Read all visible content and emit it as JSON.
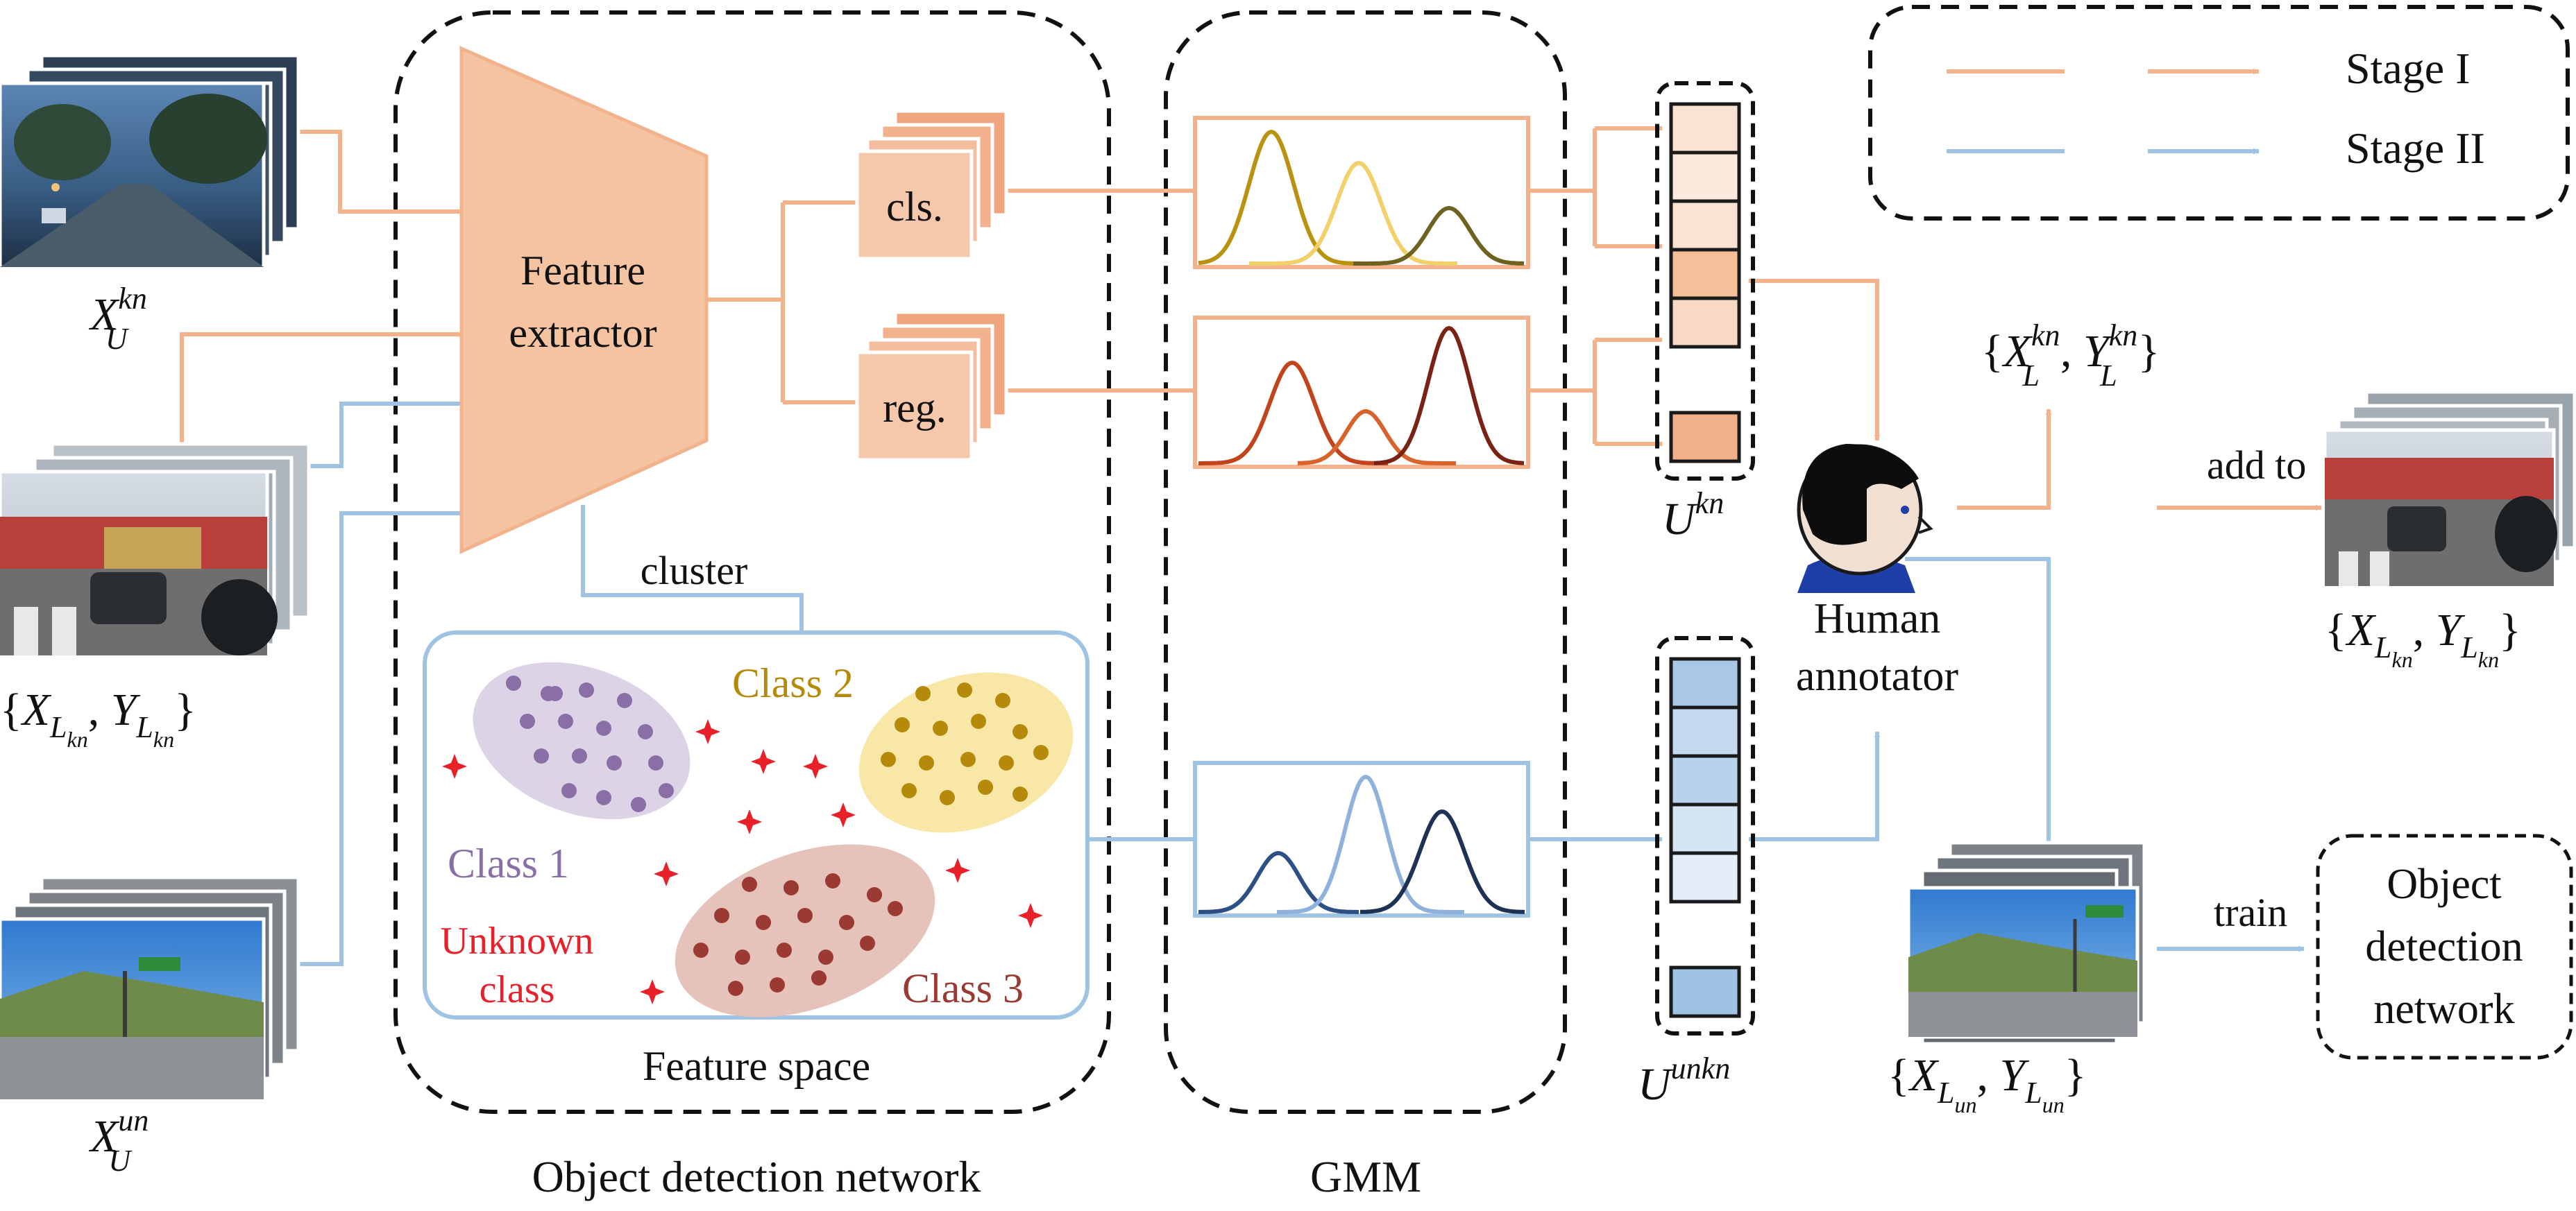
{
  "colors": {
    "stage1": "#f2b38c",
    "stage2": "#9fc3e2",
    "extractor": "#f4c4a2",
    "class1": "#8a6fa6",
    "class2": "#b58a0a",
    "class3": "#9a3a32",
    "unknown": "#e8202a",
    "gmm_cls": [
      "#b9930f",
      "#f2d06a",
      "#6e6220"
    ],
    "gmm_reg": [
      "#c2431c",
      "#d8632b",
      "#7a2315"
    ],
    "gmm_unkn": [
      "#2c4f84",
      "#8fb2dc",
      "#1e3255"
    ]
  },
  "legend": {
    "stage1": "Stage I",
    "stage2": "Stage II"
  },
  "groups": {
    "detection": "Object detection network",
    "gmm": "GMM"
  },
  "blocks": {
    "extractor_line1": "Feature",
    "extractor_line2": "extractor",
    "cls": "cls.",
    "reg": "reg.",
    "cluster": "cluster",
    "feature_space": "Feature space",
    "class1": "Class 1",
    "class2": "Class 2",
    "class3": "Class 3",
    "unknown_line1": "Unknown",
    "unknown_line2": "class",
    "human_line1": "Human",
    "human_line2": "annotator",
    "add_to": "add to",
    "train": "train",
    "odn_line1": "Object",
    "odn_line2": "detection",
    "odn_line3": "network"
  },
  "math": {
    "xu_kn": {
      "base": "X",
      "sup": "kn",
      "sub": "U"
    },
    "xl_yl_kn": {
      "x": "X",
      "y": "Y",
      "sub_main": "L",
      "sub_sub": "kn"
    },
    "xu_un": {
      "base": "X",
      "sup": "un",
      "sub": "U"
    },
    "u_kn": {
      "base": "U",
      "sup": "kn"
    },
    "u_unkn": {
      "base": "U",
      "sup": "unkn"
    },
    "xl_yl_kn_sup": {
      "x": "X",
      "y": "Y",
      "sup": "kn",
      "sub": "L"
    },
    "xl_yl_kn_out": {
      "x": "X",
      "y": "Y",
      "sub_main": "L",
      "sub_sub": "kn"
    },
    "xl_yl_un": {
      "x": "X",
      "y": "Y",
      "sub_main": "L",
      "sub_sub": "un"
    }
  }
}
